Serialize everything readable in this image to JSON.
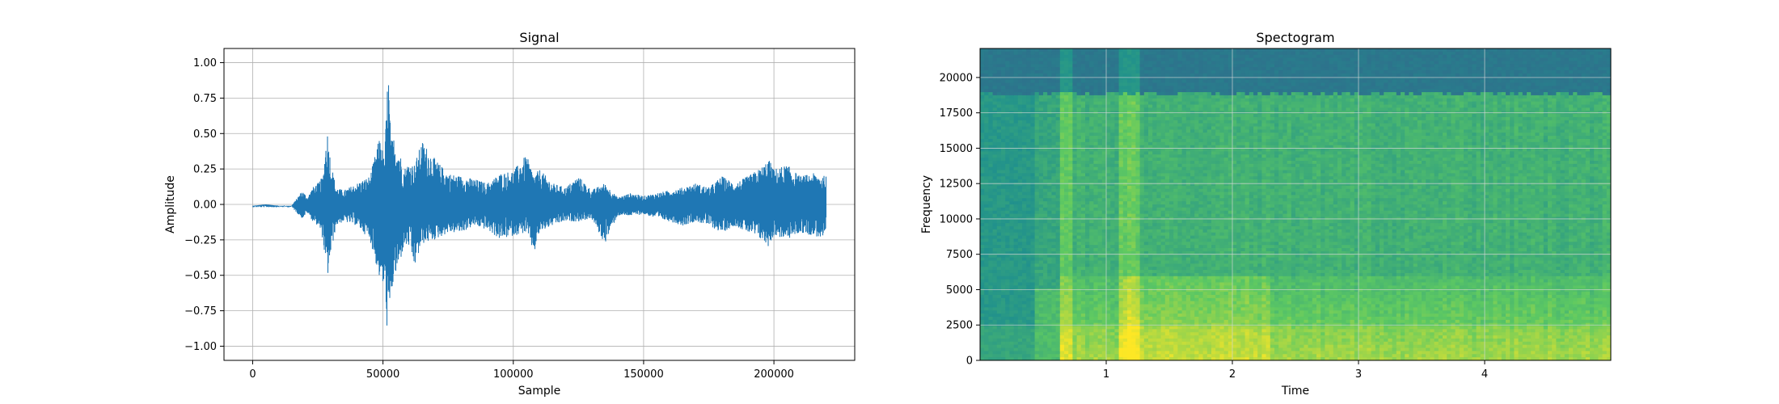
{
  "figure": {
    "charts": [
      {
        "title": "Signal",
        "xlabel": "Sample",
        "ylabel": "Amplitude"
      },
      {
        "title": "Spectogram",
        "xlabel": "Time",
        "ylabel": "Frequency"
      }
    ]
  },
  "chart_data": [
    {
      "type": "line",
      "title": "Signal",
      "xlabel": "Sample",
      "ylabel": "Amplitude",
      "xlim": [
        -11000,
        231000
      ],
      "ylim": [
        -1.1,
        1.1
      ],
      "xticks": [
        0,
        50000,
        100000,
        150000,
        200000
      ],
      "xtick_labels": [
        "0",
        "50000",
        "100000",
        "150000",
        "200000"
      ],
      "yticks": [
        1.0,
        0.75,
        0.5,
        0.25,
        0.0,
        -0.25,
        -0.5,
        -0.75,
        -1.0
      ],
      "ytick_labels": [
        "1.00",
        "0.75",
        "0.50",
        "0.25",
        "0.00",
        "−0.25",
        "−0.50",
        "−0.75",
        "−1.00"
      ],
      "grid": true,
      "color": "#1f77b4",
      "series": [
        {
          "x": [
            0,
            5000,
            10000,
            15000,
            19000,
            21000,
            23000,
            25000,
            27000,
            28500,
            30000,
            32000,
            35000,
            40000,
            45000,
            49000,
            50500,
            52000,
            53000,
            54000,
            56000,
            58000,
            60000,
            62000,
            65000,
            70000,
            75000,
            80000,
            85000,
            90000,
            95000,
            100000,
            105000,
            108000,
            110000,
            115000,
            120000,
            125000,
            130000,
            135000,
            140000,
            145000,
            150000,
            155000,
            160000,
            165000,
            170000,
            175000,
            180000,
            185000,
            190000,
            195000,
            198000,
            200000,
            205000,
            210000,
            215000,
            220000
          ],
          "max": [
            -0.01,
            0.0,
            -0.01,
            -0.01,
            0.1,
            0.05,
            0.12,
            0.15,
            0.2,
            0.55,
            0.3,
            0.12,
            0.1,
            0.15,
            0.2,
            0.5,
            0.3,
            1.0,
            0.45,
            0.48,
            0.4,
            0.25,
            0.3,
            0.28,
            0.45,
            0.32,
            0.22,
            0.2,
            0.18,
            0.15,
            0.22,
            0.24,
            0.35,
            0.2,
            0.25,
            0.15,
            0.12,
            0.2,
            0.1,
            0.15,
            0.05,
            0.08,
            0.06,
            0.08,
            0.1,
            0.12,
            0.15,
            0.12,
            0.2,
            0.15,
            0.2,
            0.26,
            0.32,
            0.25,
            0.28,
            0.2,
            0.22,
            0.2
          ],
          "min": [
            -0.02,
            -0.02,
            -0.02,
            -0.02,
            -0.1,
            -0.06,
            -0.12,
            -0.15,
            -0.25,
            -0.55,
            -0.35,
            -0.15,
            -0.12,
            -0.15,
            -0.25,
            -0.55,
            -0.6,
            -1.0,
            -0.7,
            -0.55,
            -0.45,
            -0.3,
            -0.3,
            -0.45,
            -0.28,
            -0.25,
            -0.2,
            -0.2,
            -0.15,
            -0.18,
            -0.25,
            -0.22,
            -0.2,
            -0.35,
            -0.2,
            -0.15,
            -0.12,
            -0.12,
            -0.1,
            -0.28,
            -0.08,
            -0.08,
            -0.07,
            -0.1,
            -0.12,
            -0.15,
            -0.12,
            -0.15,
            -0.2,
            -0.15,
            -0.2,
            -0.25,
            -0.3,
            -0.22,
            -0.25,
            -0.2,
            -0.22,
            -0.25
          ]
        }
      ]
    },
    {
      "type": "heatmap",
      "title": "Spectogram",
      "xlabel": "Time",
      "ylabel": "Frequency",
      "xlim": [
        0,
        5.0
      ],
      "ylim": [
        0,
        22050
      ],
      "xticks": [
        1,
        2,
        3,
        4
      ],
      "xtick_labels": [
        "1",
        "2",
        "3",
        "4"
      ],
      "yticks": [
        0,
        2500,
        5000,
        7500,
        10000,
        12500,
        15000,
        17500,
        20000
      ],
      "ytick_labels": [
        "0",
        "2500",
        "5000",
        "7500",
        "10000",
        "12500",
        "15000",
        "17500",
        "20000"
      ],
      "grid": true,
      "colormap": "viridis",
      "high_cutoff_frequency": 18800,
      "onset_times": [
        0.43,
        0.65,
        1.12
      ],
      "bright_bands": [
        {
          "t0": 0.64,
          "t1": 0.72
        },
        {
          "t0": 1.1,
          "t1": 1.28
        }
      ]
    }
  ]
}
